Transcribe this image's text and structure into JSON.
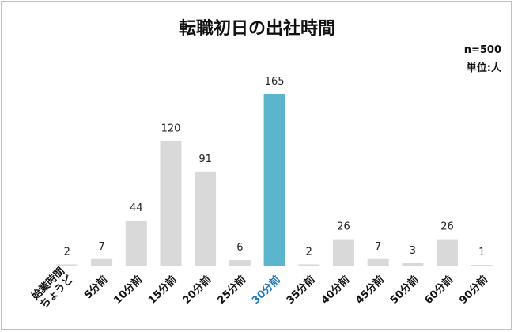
{
  "chart_data": {
    "type": "bar",
    "title": "転職初日の出社時間",
    "sample_size": "n=500",
    "unit": "単位:人",
    "categories": [
      "始業時間\nちょうど",
      "5分前",
      "10分前",
      "15分前",
      "20分前",
      "25分前",
      "30分前",
      "35分前",
      "40分前",
      "45分前",
      "50分前",
      "60分前",
      "90分前"
    ],
    "values": [
      2,
      7,
      44,
      120,
      91,
      6,
      165,
      2,
      26,
      7,
      3,
      26,
      1
    ],
    "highlight": "30分前",
    "colors": {
      "bar": "#d9d9d9",
      "highlight": "#5bb5cc",
      "highlight_label": "#1f78b4",
      "label": "#111111"
    },
    "xlabel": "",
    "ylabel": "",
    "ylim": [
      0,
      165
    ],
    "grid": false,
    "legend": "none"
  }
}
